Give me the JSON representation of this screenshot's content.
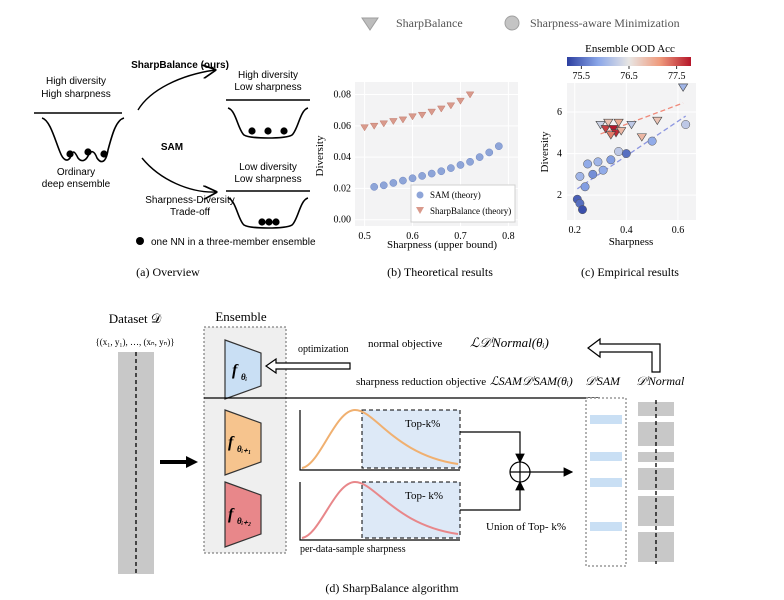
{
  "legend_top": {
    "series1": "SharpBalance",
    "series2": "Sharpness-aware Minimization"
  },
  "panel_a": {
    "caption": "(a) Overview",
    "high_div": "High diversity",
    "high_sharp": "High sharpness",
    "ordinary1": "Ordinary",
    "ordinary2": "deep ensemble",
    "sharpbalance_ours": "SharpBalance (ours)",
    "sam": "SAM",
    "hd_low_sharp1": "High diversity",
    "hd_low_sharp2": "Low sharpness",
    "ld_low_sharp1": "Low diversity",
    "ld_low_sharp2": "Low sharpness",
    "tradeoff1": "Sharpness-Diversity",
    "tradeoff2": "Trade-off",
    "dot_note": "one NN in a three-member ensemble"
  },
  "panel_b": {
    "caption": "(b) Theoretical results",
    "xlabel": "Sharpness (upper bound)",
    "ylabel": "Diversity",
    "legend1": "SAM (theory)",
    "legend2": "SharpBalance (theory)",
    "xticks": [
      "0.5",
      "0.6",
      "0.7",
      "0.8"
    ],
    "yticks": [
      "0.00",
      "0.02",
      "0.04",
      "0.06",
      "0.08"
    ]
  },
  "panel_c": {
    "caption": "(c) Empirical results",
    "xlabel": "Sharpness",
    "ylabel": "Diversity",
    "cbar_title": "Ensemble OOD Acc",
    "cbar_ticks": [
      "75.5",
      "76.5",
      "77.5"
    ],
    "xticks": [
      "0.2",
      "0.4",
      "0.6"
    ],
    "yticks": [
      "2",
      "4",
      "6"
    ]
  },
  "panel_d": {
    "caption": "(d) SharpBalance algorithm",
    "dataset": "Dataset 𝒟",
    "dataset_set": "{(x₁, y₁), …, (xₙ, yₙ)}",
    "ensemble": "Ensemble",
    "f_i": "f",
    "sub_i": "θᵢ",
    "sub_i1": "θᵢ₊₁",
    "sub_i2": "θᵢ₊₂",
    "optimization": "optimization",
    "normal_obj": "normal objective",
    "normal_obj_math": "ℒ𝒟ⁱNormal(θᵢ)",
    "sam_obj": "sharpness reduction objective",
    "sam_obj_math": "ℒSAM𝒟ⁱSAM(θᵢ)",
    "d_sam": "𝒟ⁱSAM",
    "d_normal": "𝒟ⁱNormal",
    "topk1": "Top-k%",
    "topk2": "Top- k%",
    "union": "Union of Top- k%",
    "per_sample": "per-data-sample sharpness"
  },
  "colors": {
    "sam_blue": "#8ea5d8",
    "sb_red": "#d99a8c",
    "orange": "#f6c48e",
    "pink": "#e8878a",
    "light_blue": "#c9dff4",
    "gray": "#c8c8c8"
  },
  "chart_data": [
    {
      "type": "scatter",
      "title": "",
      "xlabel": "Sharpness (upper bound)",
      "ylabel": "Diversity",
      "xlim": [
        0.48,
        0.82
      ],
      "ylim": [
        -0.004,
        0.088
      ],
      "series": [
        {
          "name": "SAM (theory)",
          "marker": "circle",
          "x": [
            0.52,
            0.54,
            0.56,
            0.58,
            0.6,
            0.62,
            0.64,
            0.66,
            0.68,
            0.7,
            0.72,
            0.74,
            0.76,
            0.78
          ],
          "y": [
            0.021,
            0.022,
            0.0235,
            0.025,
            0.0265,
            0.028,
            0.0295,
            0.031,
            0.033,
            0.035,
            0.037,
            0.04,
            0.043,
            0.047
          ]
        },
        {
          "name": "SharpBalance (theory)",
          "marker": "triangle-down",
          "x": [
            0.5,
            0.52,
            0.54,
            0.56,
            0.58,
            0.6,
            0.62,
            0.64,
            0.66,
            0.68,
            0.7,
            0.72
          ],
          "y": [
            0.059,
            0.06,
            0.0615,
            0.063,
            0.064,
            0.066,
            0.067,
            0.069,
            0.071,
            0.073,
            0.076,
            0.08
          ]
        }
      ]
    },
    {
      "type": "scatter",
      "title": "",
      "xlabel": "Sharpness",
      "ylabel": "Diversity",
      "xlim": [
        0.17,
        0.67
      ],
      "ylim": [
        0.8,
        7.4
      ],
      "colorbar": {
        "label": "Ensemble OOD Acc",
        "range": [
          75.2,
          77.8
        ]
      },
      "series": [
        {
          "name": "SharpBalance",
          "marker": "triangle-down",
          "points": [
            {
              "x": 0.3,
              "y": 5.4,
              "c": 76.3
            },
            {
              "x": 0.32,
              "y": 5.2,
              "c": 77.6
            },
            {
              "x": 0.33,
              "y": 5.5,
              "c": 76.8
            },
            {
              "x": 0.35,
              "y": 5.2,
              "c": 77.8
            },
            {
              "x": 0.36,
              "y": 5.0,
              "c": 77.7
            },
            {
              "x": 0.37,
              "y": 5.5,
              "c": 77.0
            },
            {
              "x": 0.34,
              "y": 4.9,
              "c": 77.3
            },
            {
              "x": 0.38,
              "y": 5.1,
              "c": 76.9
            },
            {
              "x": 0.42,
              "y": 5.4,
              "c": 76.2
            },
            {
              "x": 0.46,
              "y": 4.8,
              "c": 76.9
            },
            {
              "x": 0.52,
              "y": 5.6,
              "c": 76.8
            },
            {
              "x": 0.62,
              "y": 7.2,
              "c": 76.0
            }
          ]
        },
        {
          "name": "Sharpness-aware Minimization",
          "marker": "circle",
          "points": [
            {
              "x": 0.21,
              "y": 1.8,
              "c": 75.4
            },
            {
              "x": 0.22,
              "y": 1.6,
              "c": 75.5
            },
            {
              "x": 0.23,
              "y": 1.3,
              "c": 75.3
            },
            {
              "x": 0.22,
              "y": 2.9,
              "c": 76.0
            },
            {
              "x": 0.24,
              "y": 2.4,
              "c": 75.8
            },
            {
              "x": 0.25,
              "y": 3.5,
              "c": 75.9
            },
            {
              "x": 0.27,
              "y": 3.0,
              "c": 75.7
            },
            {
              "x": 0.29,
              "y": 3.6,
              "c": 76.0
            },
            {
              "x": 0.31,
              "y": 3.2,
              "c": 75.9
            },
            {
              "x": 0.34,
              "y": 3.7,
              "c": 75.8
            },
            {
              "x": 0.37,
              "y": 4.1,
              "c": 76.2
            },
            {
              "x": 0.4,
              "y": 4.0,
              "c": 75.5
            },
            {
              "x": 0.5,
              "y": 4.6,
              "c": 75.9
            },
            {
              "x": 0.63,
              "y": 5.4,
              "c": 76.2
            }
          ]
        }
      ]
    }
  ]
}
